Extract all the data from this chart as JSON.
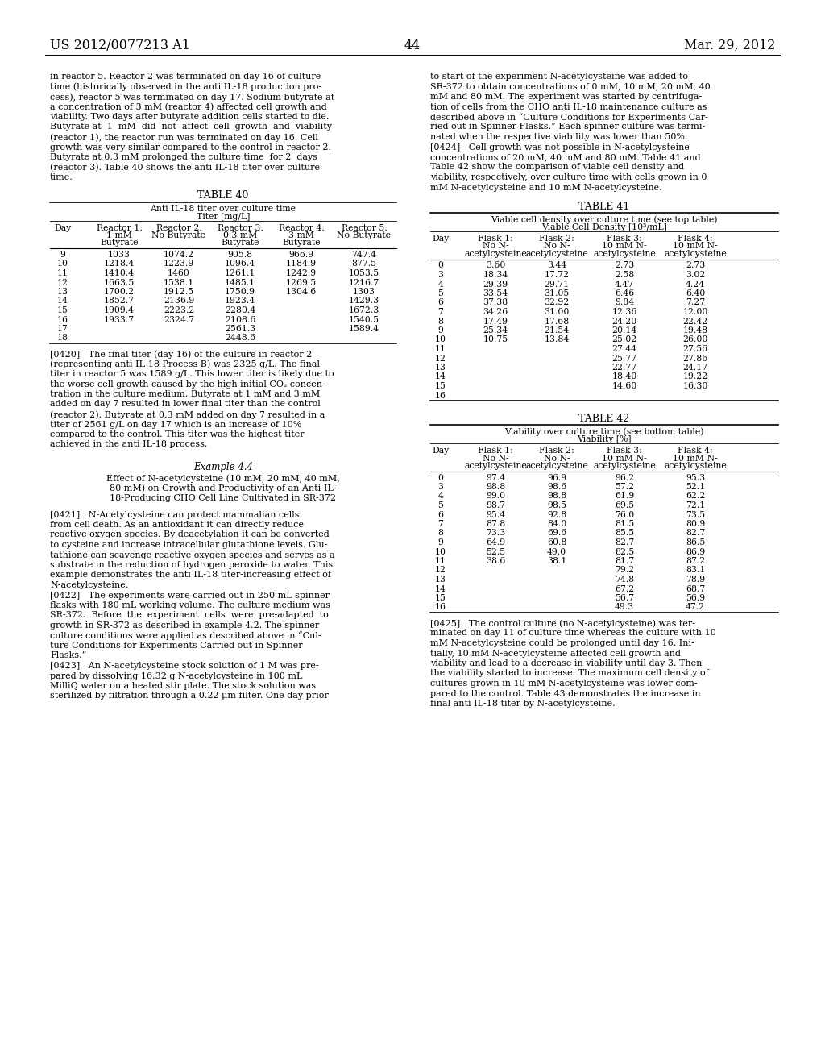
{
  "page_header_left": "US 2012/0077213 A1",
  "page_header_right": "Mar. 29, 2012",
  "page_number": "44",
  "bg_color": "#ffffff",
  "left_col_para_intro": [
    "in reactor 5. Reactor 2 was terminated on day 16 of culture",
    "time (historically observed in the anti IL-18 production pro-",
    "cess), reactor 5 was terminated on day 17. Sodium butyrate at",
    "a concentration of 3 mM (reactor 4) affected cell growth and",
    "viability. Two days after butyrate addition cells started to die.",
    "Butyrate at  1  mM  did  not  affect  cell  growth  and  viability",
    "(reactor 1), the reactor run was terminated on day 16. Cell",
    "growth was very similar compared to the control in reactor 2.",
    "Butyrate at 0.3 mM prolonged the culture time  for 2  days",
    "(reactor 3). Table 40 shows the anti IL-18 titer over culture",
    "time."
  ],
  "table40_title": "TABLE 40",
  "table40_subtitle1": "Anti IL-18 titer over culture time",
  "table40_subtitle2": "Titer [mg/L]",
  "table40_col_headers": [
    [
      "Day"
    ],
    [
      "Reactor 1:",
      "1 mM",
      "Butyrate"
    ],
    [
      "Reactor 2:",
      "No Butyrate"
    ],
    [
      "Reactor 3:",
      "0.3 mM",
      "Butyrate"
    ],
    [
      "Reactor 4:",
      "3 mM",
      "Butyrate"
    ],
    [
      "Reactor 5:",
      "No Butyrate"
    ]
  ],
  "table40_data": [
    [
      "9",
      "1033",
      "1074.2",
      "905.8",
      "966.9",
      "747.4"
    ],
    [
      "10",
      "1218.4",
      "1223.9",
      "1096.4",
      "1184.9",
      "877.5"
    ],
    [
      "11",
      "1410.4",
      "1460",
      "1261.1",
      "1242.9",
      "1053.5"
    ],
    [
      "12",
      "1663.5",
      "1538.1",
      "1485.1",
      "1269.5",
      "1216.7"
    ],
    [
      "13",
      "1700.2",
      "1912.5",
      "1750.9",
      "1304.6",
      "1303"
    ],
    [
      "14",
      "1852.7",
      "2136.9",
      "1923.4",
      "",
      "1429.3"
    ],
    [
      "15",
      "1909.4",
      "2223.2",
      "2280.4",
      "",
      "1672.3"
    ],
    [
      "16",
      "1933.7",
      "2324.7",
      "2108.6",
      "",
      "1540.5"
    ],
    [
      "17",
      "",
      "",
      "2561.3",
      "",
      "1589.4"
    ],
    [
      "18",
      "",
      "",
      "2448.6",
      "",
      ""
    ]
  ],
  "para0420_lines": [
    "[0420]   The final titer (day 16) of the culture in reactor 2",
    "(representing anti IL-18 Process B) was 2325 g/L. The final",
    "titer in reactor 5 was 1589 g/L. This lower titer is likely due to",
    "the worse cell growth caused by the high initial CO₂ concen-",
    "tration in the culture medium. Butyrate at 1 mM and 3 mM",
    "added on day 7 resulted in lower final titer than the control",
    "(reactor 2). Butyrate at 0.3 mM added on day 7 resulted in a",
    "titer of 2561 g/L on day 17 which is an increase of 10%",
    "compared to the control. This titer was the highest titer",
    "achieved in the anti IL-18 process."
  ],
  "example44_heading": "Example 4.4",
  "example44_sub_lines": [
    "Effect of N-acetylcysteine (10 mM, 20 mM, 40 mM,",
    "80 mM) on Growth and Productivity of an Anti-IL-",
    "18-Producing CHO Cell Line Cultivated in SR-372"
  ],
  "para0421_lines": [
    "[0421]   N-Acetylcysteine can protect mammalian cells",
    "from cell death. As an antioxidant it can directly reduce",
    "reactive oxygen species. By deacetylation it can be converted",
    "to cysteine and increase intracellular glutathione levels. Glu-",
    "tathione can scavenge reactive oxygen species and serves as a",
    "substrate in the reduction of hydrogen peroxide to water. This",
    "example demonstrates the anti IL-18 titer-increasing effect of",
    "N-acetylcysteine."
  ],
  "para0422_lines": [
    "[0422]   The experiments were carried out in 250 mL spinner",
    "flasks with 180 mL working volume. The culture medium was",
    "SR-372.  Before  the  experiment  cells  were  pre-adapted  to",
    "growth in SR-372 as described in example 4.2. The spinner",
    "culture conditions were applied as described above in “Cul-",
    "ture Conditions for Experiments Carried out in Spinner",
    "Flasks.”"
  ],
  "para0423_lines": [
    "[0423]   An N-acetylcysteine stock solution of 1 M was pre-",
    "pared by dissolving 16.32 g N-acetylcysteine in 100 mL",
    "MilliQ water on a heated stir plate. The stock solution was",
    "sterilized by filtration through a 0.22 μm filter. One day prior"
  ],
  "right_col_intro_lines": [
    "to start of the experiment N-acetylcysteine was added to",
    "SR-372 to obtain concentrations of 0 mM, 10 mM, 20 mM, 40",
    "mM and 80 mM. The experiment was started by centrifuga-",
    "tion of cells from the CHO anti IL-18 maintenance culture as",
    "described above in “Culture Conditions for Experiments Car-",
    "ried out in Spinner Flasks.” Each spinner culture was termi-",
    "nated when the respective viability was lower than 50%."
  ],
  "para0424_lines": [
    "[0424]   Cell growth was not possible in N-acetylcysteine",
    "concentrations of 20 mM, 40 mM and 80 mM. Table 41 and",
    "Table 42 show the comparison of viable cell density and",
    "viability, respectively, over culture time with cells grown in 0",
    "mM N-acetylcysteine and 10 mM N-acetylcysteine."
  ],
  "table41_title": "TABLE 41",
  "table41_subtitle1": "Viable cell density over culture time (see top table)",
  "table41_subtitle2": "Viable Cell Density [10⁵/mL]",
  "table41_col_headers": [
    [
      "Day"
    ],
    [
      "Flask 1:",
      "No N-",
      "acetylcysteine"
    ],
    [
      "Flask 2:",
      "No N-",
      "acetylcysteine"
    ],
    [
      "Flask 3:",
      "10 mM N-",
      "acetylcysteine"
    ],
    [
      "Flask 4:",
      "10 mM N-",
      "acetylcysteine"
    ]
  ],
  "table41_data": [
    [
      "0",
      "3.60",
      "3.44",
      "2.73",
      "2.73"
    ],
    [
      "3",
      "18.34",
      "17.72",
      "2.58",
      "3.02"
    ],
    [
      "4",
      "29.39",
      "29.71",
      "4.47",
      "4.24"
    ],
    [
      "5",
      "33.54",
      "31.05",
      "6.46",
      "6.40"
    ],
    [
      "6",
      "37.38",
      "32.92",
      "9.84",
      "7.27"
    ],
    [
      "7",
      "34.26",
      "31.00",
      "12.36",
      "12.00"
    ],
    [
      "8",
      "17.49",
      "17.68",
      "24.20",
      "22.42"
    ],
    [
      "9",
      "25.34",
      "21.54",
      "20.14",
      "19.48"
    ],
    [
      "10",
      "10.75",
      "13.84",
      "25.02",
      "26.00"
    ],
    [
      "11",
      "",
      "",
      "27.44",
      "27.56"
    ],
    [
      "12",
      "",
      "",
      "25.77",
      "27.86"
    ],
    [
      "13",
      "",
      "",
      "22.77",
      "24.17"
    ],
    [
      "14",
      "",
      "",
      "18.40",
      "19.22"
    ],
    [
      "15",
      "",
      "",
      "14.60",
      "16.30"
    ],
    [
      "16",
      "",
      "",
      "",
      ""
    ]
  ],
  "table42_title": "TABLE 42",
  "table42_subtitle1": "Viability over culture time (see bottom table)",
  "table42_subtitle2": "Viability [%]",
  "table42_data": [
    [
      "0",
      "97.4",
      "96.9",
      "96.2",
      "95.3"
    ],
    [
      "3",
      "98.8",
      "98.6",
      "57.2",
      "52.1"
    ],
    [
      "4",
      "99.0",
      "98.8",
      "61.9",
      "62.2"
    ],
    [
      "5",
      "98.7",
      "98.5",
      "69.5",
      "72.1"
    ],
    [
      "6",
      "95.4",
      "92.8",
      "76.0",
      "73.5"
    ],
    [
      "7",
      "87.8",
      "84.0",
      "81.5",
      "80.9"
    ],
    [
      "8",
      "73.3",
      "69.6",
      "85.5",
      "82.7"
    ],
    [
      "9",
      "64.9",
      "60.8",
      "82.7",
      "86.5"
    ],
    [
      "10",
      "52.5",
      "49.0",
      "82.5",
      "86.9"
    ],
    [
      "11",
      "38.6",
      "38.1",
      "81.7",
      "87.2"
    ],
    [
      "12",
      "",
      "",
      "79.2",
      "83.1"
    ],
    [
      "13",
      "",
      "",
      "74.8",
      "78.9"
    ],
    [
      "14",
      "",
      "",
      "67.2",
      "68.7"
    ],
    [
      "15",
      "",
      "",
      "56.7",
      "56.9"
    ],
    [
      "16",
      "",
      "",
      "49.3",
      "47.2"
    ]
  ],
  "para0425_lines": [
    "[0425]   The control culture (no N-acetylcysteine) was ter-",
    "minated on day 11 of culture time whereas the culture with 10",
    "mM N-acetylcysteine could be prolonged until day 16. Ini-",
    "tially, 10 mM N-acetylcysteine affected cell growth and",
    "viability and lead to a decrease in viability until day 3. Then",
    "the viability started to increase. The maximum cell density of",
    "cultures grown in 10 mM N-acetylcysteine was lower com-",
    "pared to the control. Table 43 demonstrates the increase in",
    "final anti IL-18 titer by N-acetylcysteine."
  ]
}
